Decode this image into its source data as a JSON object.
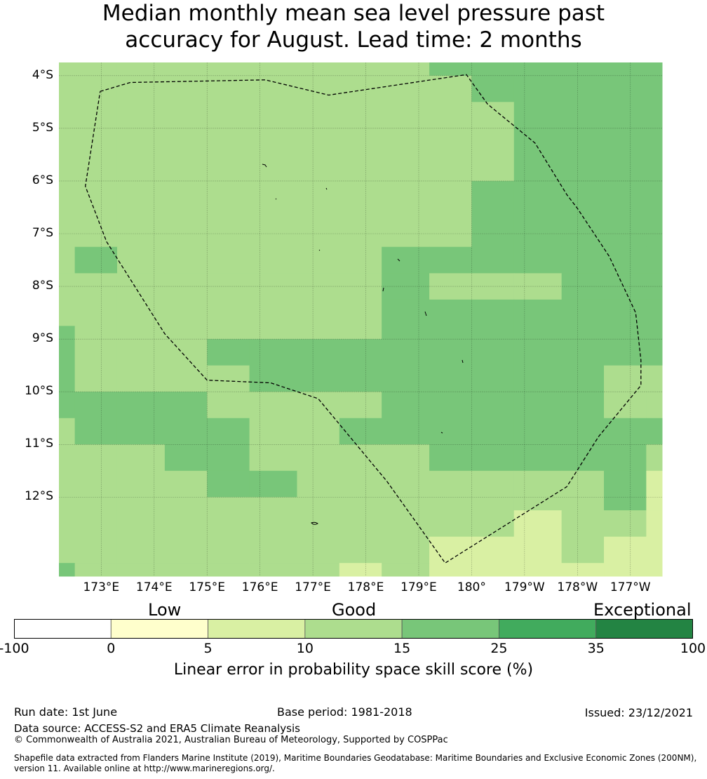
{
  "title": {
    "line1": "Median monthly mean sea level pressure past",
    "line2": "accuracy for August. Lead time: 2 months"
  },
  "map": {
    "lon_range": [
      172.2,
      183.6
    ],
    "lat_range": [
      -13.5,
      -3.75
    ],
    "lat_ticks": [
      {
        "value": -4,
        "label": "4°S"
      },
      {
        "value": -5,
        "label": "5°S"
      },
      {
        "value": -6,
        "label": "6°S"
      },
      {
        "value": -7,
        "label": "7°S"
      },
      {
        "value": -8,
        "label": "8°S"
      },
      {
        "value": -9,
        "label": "9°S"
      },
      {
        "value": -10,
        "label": "10°S"
      },
      {
        "value": -11,
        "label": "11°S"
      },
      {
        "value": -12,
        "label": "12°S"
      }
    ],
    "lon_ticks": [
      {
        "value": 173,
        "label": "173°E"
      },
      {
        "value": 174,
        "label": "174°E"
      },
      {
        "value": 175,
        "label": "175°E"
      },
      {
        "value": 176,
        "label": "176°E"
      },
      {
        "value": 177,
        "label": "177°E"
      },
      {
        "value": 178,
        "label": "178°E"
      },
      {
        "value": 179,
        "label": "179°E"
      },
      {
        "value": 180,
        "label": "180°"
      },
      {
        "value": 181,
        "label": "179°W"
      },
      {
        "value": 182,
        "label": "178°W"
      },
      {
        "value": 183,
        "label": "177°W"
      }
    ],
    "grid": {
      "columns": [
        "172.2-172.5",
        "172.5-173.3",
        "173.3-174.2",
        "174.2-175",
        "175-175.8",
        "175.8-176.7",
        "176.7-177.5",
        "177.5-178.3",
        "178.3-179.2",
        "179.2-180",
        "180-180.8",
        "180.8-181.7",
        "181.7-182.5",
        "182.5-183.3",
        "183.3-183.6"
      ],
      "rows": [
        "-3.75 to -4",
        "-4 to -4.5",
        "-4.5 to -6",
        "-6 to -7.25",
        "-7.25 to -7.75",
        "-7.75 to -8.25",
        "-8.25 to -8.75",
        "-8.75 to -9",
        "-9 to -9.5",
        "-9.5 to -10",
        "-10 to -10.5",
        "-10.5 to -11",
        "-11 to -11.5",
        "-11.5 to -12",
        "-12 to -12.25",
        "-12.25 to -12.75",
        "-12.75 to -13.25",
        "-13.25 to -13.5"
      ],
      "cell_category": [
        [
          3,
          3,
          3,
          3,
          3,
          3,
          3,
          3,
          3,
          4,
          4,
          4,
          4,
          4,
          4
        ],
        [
          3,
          3,
          3,
          3,
          3,
          3,
          3,
          3,
          3,
          3,
          4,
          4,
          4,
          4,
          4
        ],
        [
          3,
          3,
          3,
          3,
          3,
          3,
          3,
          3,
          3,
          3,
          3,
          4,
          4,
          4,
          4
        ],
        [
          3,
          3,
          3,
          3,
          3,
          3,
          3,
          3,
          3,
          3,
          4,
          4,
          4,
          4,
          4
        ],
        [
          3,
          4,
          3,
          3,
          3,
          3,
          3,
          3,
          4,
          4,
          4,
          4,
          4,
          4,
          4
        ],
        [
          3,
          3,
          3,
          3,
          3,
          3,
          3,
          3,
          4,
          3,
          3,
          3,
          4,
          4,
          4
        ],
        [
          3,
          3,
          3,
          3,
          3,
          3,
          3,
          3,
          4,
          4,
          4,
          4,
          4,
          4,
          4
        ],
        [
          4,
          3,
          3,
          3,
          3,
          3,
          3,
          3,
          4,
          4,
          4,
          4,
          4,
          4,
          4
        ],
        [
          4,
          3,
          3,
          3,
          4,
          4,
          4,
          4,
          4,
          4,
          4,
          4,
          4,
          4,
          4
        ],
        [
          4,
          3,
          3,
          3,
          3,
          4,
          4,
          4,
          4,
          4,
          4,
          4,
          4,
          3,
          3
        ],
        [
          4,
          4,
          4,
          4,
          3,
          3,
          3,
          3,
          4,
          4,
          4,
          4,
          4,
          3,
          3
        ],
        [
          3,
          4,
          4,
          4,
          4,
          3,
          3,
          4,
          4,
          4,
          4,
          4,
          4,
          4,
          4
        ],
        [
          3,
          3,
          3,
          4,
          4,
          3,
          3,
          3,
          3,
          4,
          4,
          4,
          4,
          4,
          3
        ],
        [
          3,
          3,
          3,
          3,
          4,
          4,
          3,
          3,
          3,
          3,
          3,
          3,
          3,
          4,
          2
        ],
        [
          3,
          3,
          3,
          3,
          3,
          3,
          3,
          3,
          3,
          3,
          3,
          3,
          3,
          4,
          2
        ],
        [
          3,
          3,
          3,
          3,
          3,
          3,
          3,
          3,
          3,
          3,
          3,
          2,
          3,
          3,
          2
        ],
        [
          3,
          3,
          3,
          3,
          3,
          3,
          3,
          3,
          3,
          2,
          2,
          2,
          3,
          2,
          2
        ],
        [
          4,
          3,
          3,
          3,
          3,
          3,
          3,
          2,
          3,
          2,
          2,
          2,
          2,
          2,
          2
        ]
      ]
    },
    "eez_boundary": [
      [
        172.98,
        -4.3
      ],
      [
        173.55,
        -4.13
      ],
      [
        176.1,
        -4.08
      ],
      [
        177.3,
        -4.37
      ],
      [
        179.9,
        -3.98
      ],
      [
        180.3,
        -4.54
      ],
      [
        181.2,
        -5.28
      ],
      [
        181.8,
        -6.26
      ],
      [
        182.0,
        -6.52
      ],
      [
        182.6,
        -7.43
      ],
      [
        183.1,
        -8.5
      ],
      [
        183.2,
        -9.4
      ],
      [
        183.2,
        -9.88
      ],
      [
        182.4,
        -10.85
      ],
      [
        181.8,
        -11.8
      ],
      [
        179.5,
        -13.25
      ],
      [
        178.4,
        -11.7
      ],
      [
        177.1,
        -10.13
      ],
      [
        176.2,
        -9.83
      ],
      [
        175.0,
        -9.78
      ],
      [
        174.2,
        -8.9
      ],
      [
        173.1,
        -7.15
      ],
      [
        172.7,
        -6.1
      ],
      [
        172.98,
        -4.3
      ]
    ]
  },
  "colorbar": {
    "boundaries": [
      "-100",
      "0",
      "5",
      "10",
      "15",
      "25",
      "35",
      "100"
    ],
    "colors": [
      "#ffffff",
      "#ffffcc",
      "#d9f0a3",
      "#addd8e",
      "#78c679",
      "#41ab5d",
      "#238443"
    ],
    "category_labels": [
      {
        "label": "Low"
      },
      {
        "label": "Good"
      },
      {
        "label": "Exceptional"
      }
    ],
    "axis_label": "Linear error in probability space skill score (%)"
  },
  "footer": {
    "run_date": "Run date: 1st June",
    "base_period": "Base period: 1981-2018",
    "issued": "Issued: 23/12/2021",
    "data_source": "Data source: ACCESS-S2 and ERA5 Climate Reanalysis",
    "copyright": "© Commonwealth of Australia 2021, Australian Bureau of Meteorology, Supported by COSPPac",
    "shapefile_line1": "Shapefile data extracted from Flanders Marine Institute (2019), Maritime Boundaries Geodatabase: Maritime Boundaries and Exclusive Economic Zones (200NM),",
    "shapefile_line2": "version 11. Available online at http://www.marineregions.org/."
  }
}
